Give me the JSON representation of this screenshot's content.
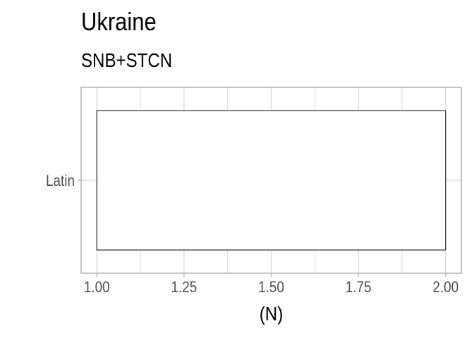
{
  "chart_data": {
    "type": "bar",
    "title": "Ukraine",
    "subtitle": "SNB+STCN",
    "orientation": "horizontal",
    "categories": [
      "Latin"
    ],
    "bars": [
      {
        "category": "Latin",
        "start": 1.0,
        "end": 2.0,
        "fill": "#ffffff",
        "stroke": "#000000"
      }
    ],
    "xlabel": "(N)",
    "ylabel": "",
    "xlim": [
      0.955,
      2.045
    ],
    "x_ticks": [
      1.0,
      1.25,
      1.5,
      1.75,
      2.0
    ],
    "x_tick_labels": [
      "1.00",
      "1.25",
      "1.50",
      "1.75",
      "2.00"
    ],
    "grid": true,
    "grid_color": "#d9d9d9",
    "panel_border_color": "#b3b3b3",
    "tick_label_color": "#4d4d4d"
  }
}
